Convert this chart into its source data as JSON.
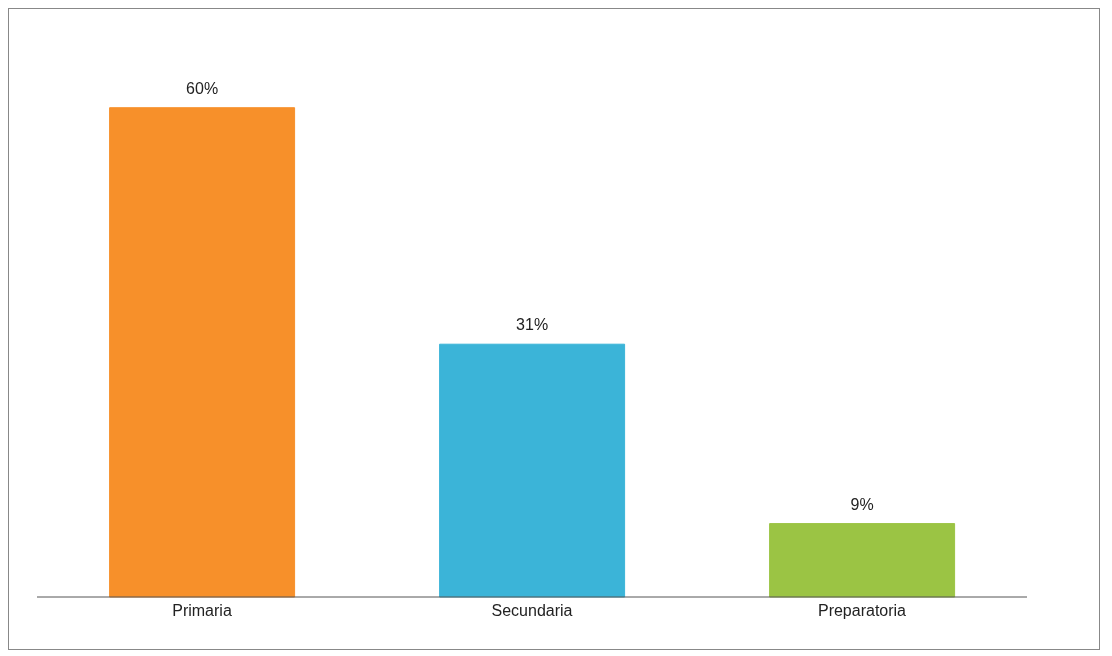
{
  "chart_data": {
    "type": "bar",
    "categories": [
      "Primaria",
      "Secundaria",
      "Preparatoria"
    ],
    "values": [
      60,
      31,
      9
    ],
    "colors": [
      "#f7902a",
      "#3bb4d8",
      "#9bc444"
    ],
    "value_labels": [
      "60%",
      "31%",
      "9%"
    ],
    "grid": false,
    "legend": false
  }
}
